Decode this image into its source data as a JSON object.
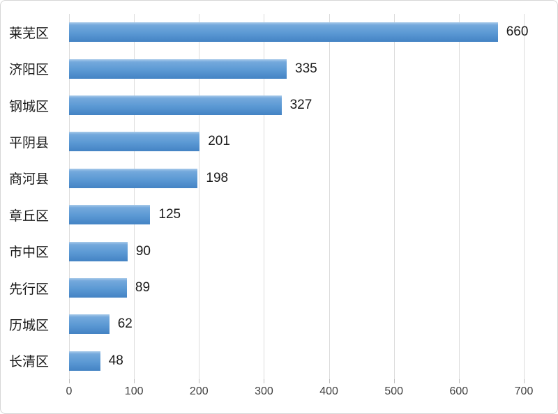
{
  "chart_data": {
    "type": "bar",
    "orientation": "horizontal",
    "title": "",
    "xlabel": "",
    "ylabel": "",
    "categories": [
      "莱芜区",
      "济阳区",
      "钢城区",
      "平阴县",
      "商河县",
      "章丘区",
      "市中区",
      "先行区",
      "历城区",
      "长清区"
    ],
    "values": [
      660,
      335,
      327,
      201,
      198,
      125,
      90,
      89,
      62,
      48
    ],
    "data_labels_shown": true,
    "xlim": [
      0,
      700
    ],
    "xticks": [
      0,
      100,
      200,
      300,
      400,
      500,
      600,
      700
    ],
    "grid": "vertical",
    "legend": "none",
    "colors": {
      "bar_highlight": "#a9cbea",
      "bar_top": "#74a9dc",
      "bar_mid": "#5b99d4",
      "bar_bottom": "#4483c4",
      "gridline_color": "#dcdcdc",
      "tick_color": "#bfbfbf",
      "label_color": "#1a1a1a",
      "axis_color": "#404040",
      "border_color": "#d6d6d6"
    }
  }
}
